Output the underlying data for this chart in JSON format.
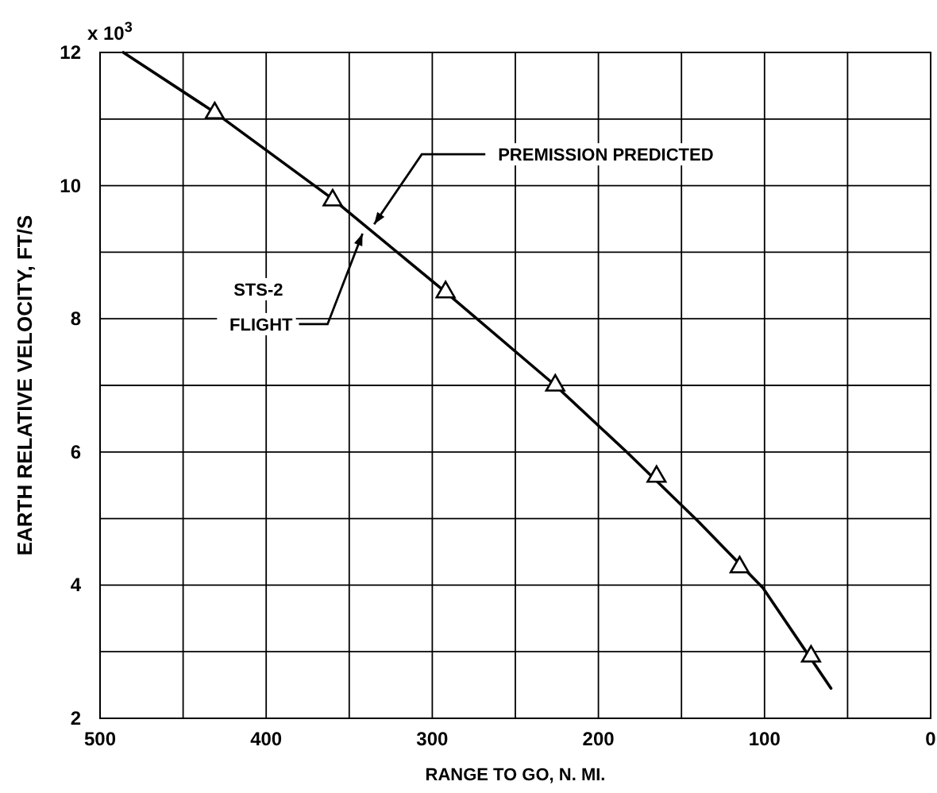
{
  "chart_data": {
    "type": "line",
    "xlabel": "RANGE TO GO, N. MI.",
    "ylabel": "EARTH RELATIVE VELOCITY, FT/S",
    "xlim": [
      500,
      0
    ],
    "ylim": [
      2,
      12
    ],
    "xticks": [
      500,
      {
        "value": 450,
        "label": null
      },
      400,
      {
        "value": 350,
        "label": null
      },
      300,
      {
        "value": 250,
        "label": null
      },
      200,
      {
        "value": 150,
        "label": null
      },
      100,
      {
        "value": 50,
        "label": null
      },
      0
    ],
    "yticks": [
      2,
      {
        "value": 3,
        "label": null
      },
      4,
      {
        "value": 5,
        "label": null
      },
      6,
      {
        "value": 7,
        "label": null
      },
      8,
      {
        "value": 9,
        "label": null
      },
      10,
      {
        "value": 11,
        "label": null
      },
      12
    ],
    "grid": true,
    "series": [
      {
        "color": "#000000",
        "marker": "none",
        "line_style": "solid",
        "x": [
          486,
          431,
          360,
          292,
          226,
          183,
          140,
          101,
          60
        ],
        "values": [
          12,
          11.1,
          9.8,
          8.4,
          7.0,
          6.0,
          4.96,
          3.96,
          2.45
        ]
      },
      {
        "type": "scatter",
        "color": "#000000",
        "marker": "triangle",
        "x": [
          431,
          360,
          292,
          226,
          165,
          115,
          72
        ],
        "values": [
          11.09,
          9.78,
          8.4,
          7.0,
          5.63,
          4.27,
          2.93
        ]
      }
    ],
    "annotations": [
      {
        "text": "PREMISSION PREDICTED",
        "x": 335,
        "y": 9.42
      },
      {
        "text": "STS-2 FLIGHT",
        "x": 342,
        "y": 9.28
      },
      "x 10$^{3}$"
    ]
  }
}
